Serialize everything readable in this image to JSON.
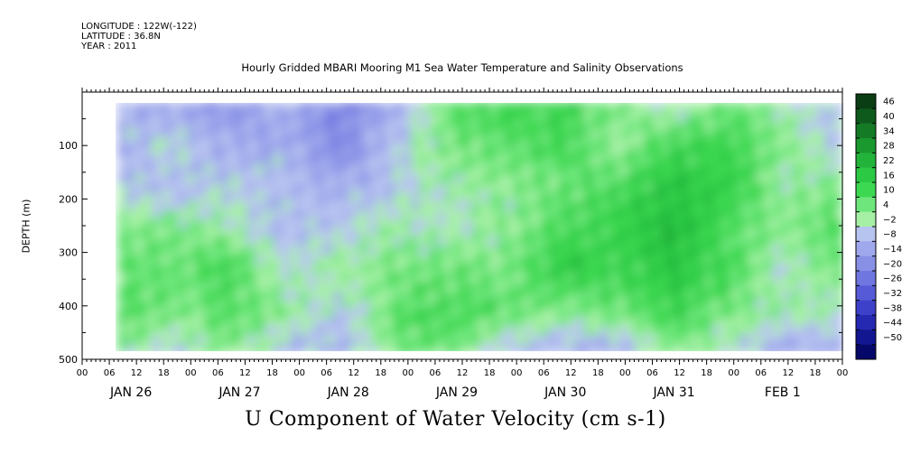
{
  "meta": {
    "longitude": "LONGITUDE : 122W(-122)",
    "latitude": "LATITUDE : 36.8N",
    "year": "YEAR : 2011"
  },
  "header": {
    "subtitle": "Hourly Gridded MBARI Mooring M1 Sea Water Temperature and Salinity Observations"
  },
  "chart_data": {
    "type": "heatmap",
    "title": "U Component of Water Velocity (cm s-1)",
    "xlabel": "",
    "ylabel": "DEPTH (m)",
    "ylim": [
      500,
      0
    ],
    "y_ticks": [
      100,
      200,
      300,
      400,
      500
    ],
    "hour_labels": [
      "00",
      "06",
      "12",
      "18",
      "00",
      "06",
      "12",
      "18",
      "00",
      "06",
      "12",
      "18",
      "00",
      "06",
      "12",
      "18",
      "00",
      "06",
      "12",
      "18",
      "00",
      "06",
      "12",
      "18",
      "00",
      "06",
      "12",
      "18",
      "00"
    ],
    "date_labels": [
      "JAN 26",
      "JAN 27",
      "JAN 28",
      "JAN 29",
      "JAN 30",
      "JAN 31",
      "FEB  1"
    ],
    "data_depth_range_m": [
      20,
      490
    ],
    "data_time_start": "JAN 26 08",
    "colorbar": {
      "labels": [
        46,
        40,
        34,
        28,
        22,
        16,
        10,
        4,
        -2,
        -8,
        -14,
        -20,
        -26,
        -32,
        -38,
        -44,
        -50
      ],
      "colors": [
        "#0a3d14",
        "#0e5a1c",
        "#147a26",
        "#1a992f",
        "#22b33a",
        "#2cc944",
        "#3cd851",
        "#6ee67c",
        "#a6f0a6",
        "#b8c4f0",
        "#9fa8ec",
        "#8890e6",
        "#6f76df",
        "#565ad6",
        "#3d40c8",
        "#2528b0",
        "#121690",
        "#050868"
      ]
    },
    "velocity_grid": {
      "times": [
        "JAN 26 08",
        "JAN 26 20",
        "JAN 27 08",
        "JAN 27 20",
        "JAN 28 08",
        "JAN 28 20",
        "JAN 29 08",
        "JAN 29 20",
        "JAN 30 08",
        "JAN 30 20",
        "JAN 31 08",
        "JAN 31 20",
        "FEB 1 08",
        "FEB 1 20"
      ],
      "depths_m": [
        25,
        75,
        150,
        225,
        300,
        375,
        450
      ],
      "values_cm_s": [
        [
          -8,
          -12,
          -16,
          -8,
          -20,
          -10,
          10,
          12,
          16,
          6,
          -4,
          8,
          -2,
          -6
        ],
        [
          -10,
          -2,
          -10,
          -10,
          -18,
          -4,
          6,
          10,
          12,
          2,
          14,
          14,
          4,
          -4
        ],
        [
          -4,
          -8,
          -4,
          -6,
          -10,
          -6,
          2,
          4,
          8,
          12,
          20,
          16,
          2,
          6
        ],
        [
          4,
          6,
          2,
          -8,
          -4,
          2,
          -2,
          4,
          12,
          16,
          22,
          10,
          4,
          12
        ],
        [
          10,
          8,
          14,
          -2,
          2,
          6,
          8,
          6,
          18,
          14,
          20,
          12,
          -2,
          8
        ],
        [
          12,
          6,
          10,
          4,
          -4,
          10,
          12,
          10,
          4,
          8,
          14,
          6,
          2,
          0
        ],
        [
          4,
          -6,
          6,
          -8,
          -10,
          6,
          8,
          -8,
          -10,
          -12,
          4,
          -2,
          -14,
          -8
        ]
      ]
    }
  }
}
